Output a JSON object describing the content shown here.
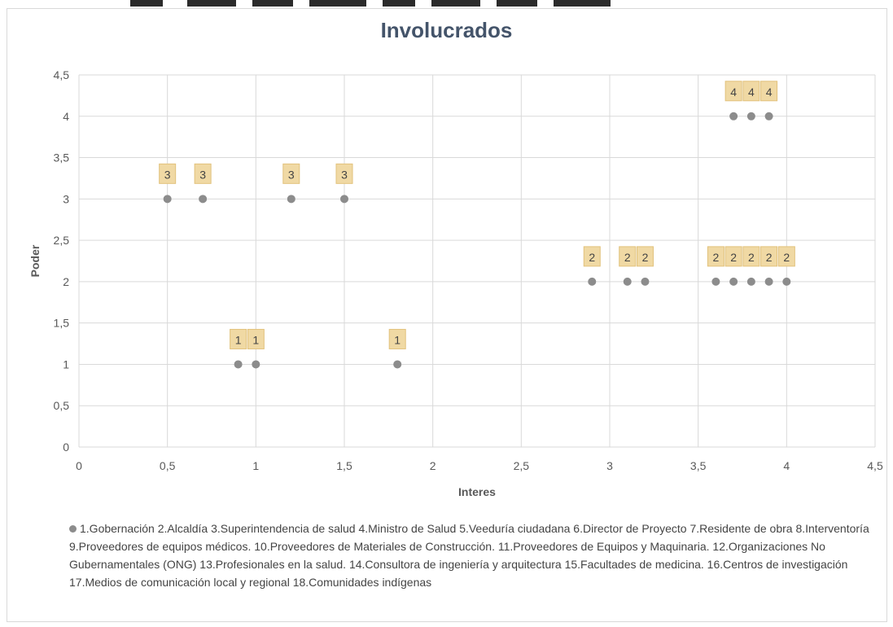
{
  "colors": {
    "point": "#8c8c8c",
    "label_bg": "#f0d9a4",
    "grid": "#d9d9d9",
    "axis_text": "#595959",
    "title": "#44546a"
  },
  "chart_data": {
    "type": "scatter",
    "title": "Involucrados",
    "xlabel": "Interes",
    "ylabel": "Poder",
    "xlim": [
      0,
      4.5
    ],
    "ylim": [
      0,
      4.5
    ],
    "x_ticks": [
      "0",
      "0,5",
      "1",
      "1,5",
      "2",
      "2,5",
      "3",
      "3,5",
      "4",
      "4,5"
    ],
    "y_ticks": [
      "0",
      "0,5",
      "1",
      "1,5",
      "2",
      "2,5",
      "3",
      "3,5",
      "4",
      "4,5"
    ],
    "grid": true,
    "legend_position": "bottom",
    "series": [
      {
        "points": [
          {
            "x": 0.5,
            "y": 3,
            "label": "3"
          },
          {
            "x": 0.7,
            "y": 3,
            "label": "3"
          },
          {
            "x": 1.2,
            "y": 3,
            "label": "3"
          },
          {
            "x": 1.5,
            "y": 3,
            "label": "3"
          },
          {
            "x": 0.9,
            "y": 1,
            "label": "1"
          },
          {
            "x": 1.0,
            "y": 1,
            "label": "1"
          },
          {
            "x": 1.8,
            "y": 1,
            "label": "1"
          },
          {
            "x": 2.9,
            "y": 2,
            "label": "2"
          },
          {
            "x": 3.1,
            "y": 2,
            "label": "2"
          },
          {
            "x": 3.2,
            "y": 2,
            "label": "2"
          },
          {
            "x": 3.6,
            "y": 2,
            "label": "2"
          },
          {
            "x": 3.7,
            "y": 2,
            "label": "2"
          },
          {
            "x": 3.8,
            "y": 2,
            "label": "2"
          },
          {
            "x": 3.9,
            "y": 2,
            "label": "2"
          },
          {
            "x": 4.0,
            "y": 2,
            "label": "2"
          },
          {
            "x": 3.7,
            "y": 4,
            "label": "4"
          },
          {
            "x": 3.8,
            "y": 4,
            "label": "4"
          },
          {
            "x": 3.9,
            "y": 4,
            "label": "4"
          }
        ]
      }
    ],
    "legend_text": "1.Gobernación 2.Alcaldía 3.Superintendencia de salud 4.Ministro de Salud 5.Veeduría ciudadana 6.Director de Proyecto 7.Residente de obra 8.Interventoría 9.Proveedores de equipos médicos. 10.Proveedores de Materiales de Construcción. 11.Proveedores de Equipos y Maquinaria. 12.Organizaciones No Gubernamentales (ONG) 13.Profesionales en la salud. 14.Consultora de ingeniería y arquitectura 15.Facultades de medicina. 16.Centros de investigación 17.Medios de comunicación local y regional 18.Comunidades indígenas"
  }
}
